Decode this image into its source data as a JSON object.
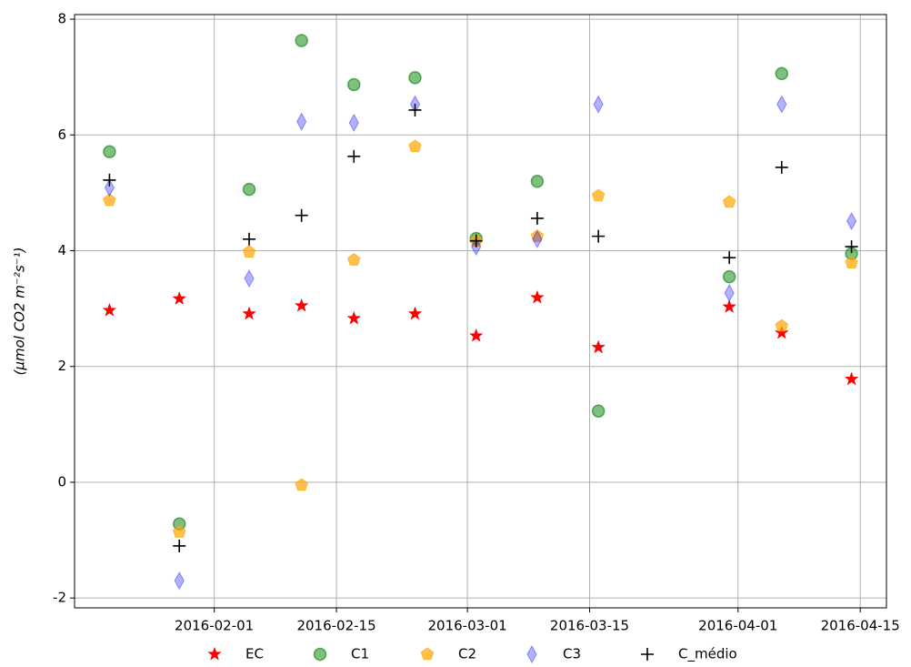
{
  "chart_data": {
    "type": "scatter",
    "ylabel": "(μmol CO2 m⁻²s⁻¹)",
    "x": [
      "2016-01-20",
      "2016-01-28",
      "2016-02-05",
      "2016-02-11",
      "2016-02-17",
      "2016-02-24",
      "2016-03-02",
      "2016-03-09",
      "2016-03-16",
      "2016-03-31",
      "2016-04-06",
      "2016-04-14"
    ],
    "xlim": [
      "2016-01-16",
      "2016-04-18"
    ],
    "xticks": [
      "2016-02-01",
      "2016-02-15",
      "2016-03-01",
      "2016-03-15",
      "2016-04-01",
      "2016-04-15"
    ],
    "ylim": [
      -2.17,
      8.08
    ],
    "yticks": [
      -2,
      0,
      2,
      4,
      6,
      8
    ],
    "grid": true,
    "legend": "bottom",
    "series": [
      {
        "name": "EC",
        "color": "#ff0000",
        "marker": "star",
        "values": [
          2.97,
          3.17,
          2.91,
          3.05,
          2.83,
          2.91,
          2.53,
          3.19,
          2.33,
          3.03,
          2.58,
          1.78
        ]
      },
      {
        "name": "C1",
        "color": "#008000",
        "marker": "circle",
        "values": [
          5.71,
          -0.72,
          5.06,
          7.63,
          6.87,
          6.99,
          4.21,
          5.2,
          1.23,
          3.55,
          7.06,
          3.95
        ]
      },
      {
        "name": "C2",
        "color": "#ffa500",
        "marker": "pentagon",
        "values": [
          4.87,
          -0.86,
          3.98,
          -0.05,
          3.84,
          5.8,
          4.17,
          4.25,
          4.95,
          4.84,
          2.7,
          3.79
        ]
      },
      {
        "name": "C3",
        "color": "#0000ff",
        "marker": "thin-diamond",
        "values": [
          5.09,
          -1.7,
          3.52,
          6.23,
          6.21,
          6.53,
          4.07,
          4.2,
          6.53,
          3.27,
          6.53,
          4.51
        ]
      },
      {
        "name": "C_médio",
        "color": "#000000",
        "marker": "plus",
        "values": [
          5.22,
          -1.1,
          4.2,
          4.61,
          5.63,
          6.43,
          4.17,
          4.56,
          4.25,
          3.88,
          5.44,
          4.07
        ]
      }
    ]
  }
}
